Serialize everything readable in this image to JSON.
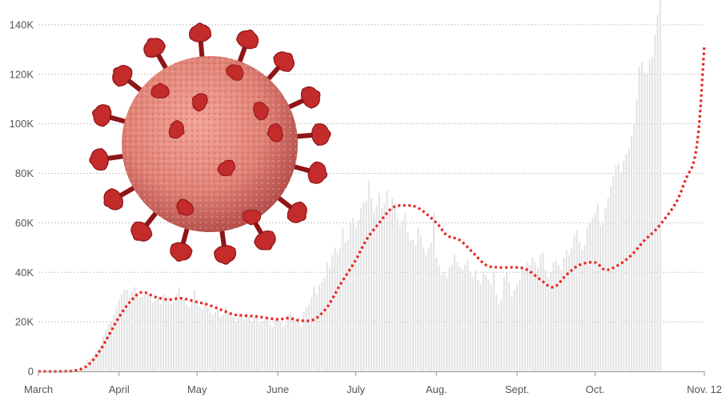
{
  "chart_data": {
    "type": "bar",
    "title": "",
    "xlabel": "",
    "ylabel": "",
    "ylim": [
      0,
      150000
    ],
    "grid": true,
    "y_ticks": [
      {
        "value": 0,
        "label": "0"
      },
      {
        "value": 20000,
        "label": "20K"
      },
      {
        "value": 40000,
        "label": "40K"
      },
      {
        "value": 60000,
        "label": "60K"
      },
      {
        "value": 80000,
        "label": "80K"
      },
      {
        "value": 100000,
        "label": "100K"
      },
      {
        "value": 120000,
        "label": "120K"
      },
      {
        "value": 140000,
        "label": "140K"
      }
    ],
    "x_ticks": [
      {
        "date": "2020-03-01",
        "label": "March"
      },
      {
        "date": "2020-04-01",
        "label": "April"
      },
      {
        "date": "2020-05-01",
        "label": "May"
      },
      {
        "date": "2020-06-01",
        "label": "June"
      },
      {
        "date": "2020-07-01",
        "label": "July"
      },
      {
        "date": "2020-08-01",
        "label": "Aug."
      },
      {
        "date": "2020-09-01",
        "label": "Sept."
      },
      {
        "date": "2020-10-01",
        "label": "Oct."
      },
      {
        "date": "2020-11-12",
        "label": "Nov. 12"
      }
    ],
    "series": [
      {
        "kind": "bars",
        "color": "#e3e3e3",
        "x_start": "2020-03-01",
        "x_interval": "1 day",
        "values": [
          0,
          0,
          0,
          0,
          0,
          0,
          0,
          0,
          0,
          0,
          1000,
          1000,
          1000,
          1000,
          1000,
          1000,
          1000,
          1000,
          2000,
          5000,
          5000,
          6000,
          8000,
          9000,
          10000,
          14000,
          17000,
          19000,
          20000,
          23000,
          26000,
          29000,
          31000,
          33000,
          33000,
          30000,
          32000,
          34000,
          32000,
          30000,
          30000,
          31000,
          32000,
          30000,
          28000,
          29000,
          30000,
          27000,
          31000,
          29000,
          30000,
          27000,
          28000,
          31000,
          34000,
          30000,
          29000,
          27000,
          26000,
          29000,
          33000,
          27000,
          26000,
          25000,
          28000,
          26000,
          24000,
          23000,
          24000,
          25000,
          22000,
          23000,
          26000,
          24000,
          23000,
          22000,
          20000,
          23000,
          22000,
          21000,
          23000,
          22000,
          20000,
          22000,
          23000,
          20000,
          20000,
          21000,
          22000,
          19000,
          18000,
          21000,
          22000,
          20000,
          18000,
          19000,
          23000,
          24000,
          22000,
          21000,
          20000,
          18000,
          24000,
          26000,
          27000,
          30000,
          34000,
          31000,
          35000,
          36000,
          38000,
          44000,
          42000,
          47000,
          50000,
          48000,
          50000,
          58000,
          52000,
          53000,
          60000,
          62000,
          58000,
          61000,
          66000,
          68000,
          69000,
          77000,
          70000,
          64000,
          67000,
          72000,
          66000,
          68000,
          73000,
          65000,
          70000,
          68000,
          62000,
          59000,
          61000,
          64000,
          56000,
          53000,
          53000,
          51000,
          58000,
          55000,
          50000,
          47000,
          50000,
          52000,
          64000,
          46000,
          43000,
          39000,
          40000,
          38000,
          42000,
          43000,
          47000,
          44000,
          42000,
          41000,
          43000,
          45000,
          40000,
          38000,
          41000,
          37000,
          35000,
          40000,
          39000,
          37000,
          35000,
          40000,
          31000,
          27000,
          29000,
          38000,
          40000,
          36000,
          30000,
          33000,
          35000,
          37000,
          42000,
          41000,
          44000,
          43000,
          46000,
          44000,
          42000,
          47000,
          48000,
          41000,
          38000,
          40000,
          44000,
          45000,
          43000,
          41000,
          46000,
          49000,
          47000,
          50000,
          55000,
          57000,
          52000,
          49000,
          51000,
          58000,
          60000,
          62000,
          64000,
          68000,
          59000,
          60000,
          66000,
          70000,
          75000,
          79000,
          83000,
          84000,
          80000,
          85000,
          88000,
          90000,
          95000,
          100000,
          110000,
          123000,
          125000,
          121000,
          120000,
          126000,
          127000,
          136000,
          144000,
          153000
        ]
      },
      {
        "kind": "line",
        "style": "dotted",
        "color": "#e8251f",
        "x": [
          "2020-03-01",
          "2020-03-10",
          "2020-03-15",
          "2020-03-20",
          "2020-03-25",
          "2020-04-01",
          "2020-04-06",
          "2020-04-10",
          "2020-04-15",
          "2020-04-20",
          "2020-04-25",
          "2020-05-01",
          "2020-05-05",
          "2020-05-10",
          "2020-05-15",
          "2020-05-20",
          "2020-05-25",
          "2020-06-01",
          "2020-06-05",
          "2020-06-10",
          "2020-06-15",
          "2020-06-20",
          "2020-06-25",
          "2020-07-01",
          "2020-07-05",
          "2020-07-10",
          "2020-07-15",
          "2020-07-20",
          "2020-07-25",
          "2020-08-01",
          "2020-08-05",
          "2020-08-10",
          "2020-08-15",
          "2020-08-20",
          "2020-08-25",
          "2020-09-01",
          "2020-09-05",
          "2020-09-10",
          "2020-09-15",
          "2020-09-20",
          "2020-09-25",
          "2020-10-01",
          "2020-10-05",
          "2020-10-10",
          "2020-10-15",
          "2020-10-20",
          "2020-10-25",
          "2020-11-01",
          "2020-11-05",
          "2020-11-08",
          "2020-11-10",
          "2020-11-12"
        ],
        "values": [
          0,
          0,
          300,
          2500,
          9000,
          22000,
          29000,
          32000,
          30000,
          29000,
          29500,
          28000,
          27000,
          25000,
          23000,
          22500,
          22000,
          21000,
          21500,
          20500,
          21000,
          26000,
          35000,
          45000,
          53000,
          60000,
          66000,
          67000,
          66000,
          60000,
          55000,
          53000,
          48000,
          43000,
          42000,
          42000,
          41000,
          37000,
          34000,
          39000,
          43000,
          44000,
          41000,
          43000,
          47000,
          53000,
          58000,
          68000,
          78000,
          85000,
          100000,
          132000
        ]
      }
    ]
  },
  "illustration": {
    "name": "coronavirus illustration",
    "colors": {
      "body": "#e08276",
      "body_dark": "#b04a48",
      "spike": "#c42b2b",
      "spike_dark": "#8e1518"
    }
  }
}
